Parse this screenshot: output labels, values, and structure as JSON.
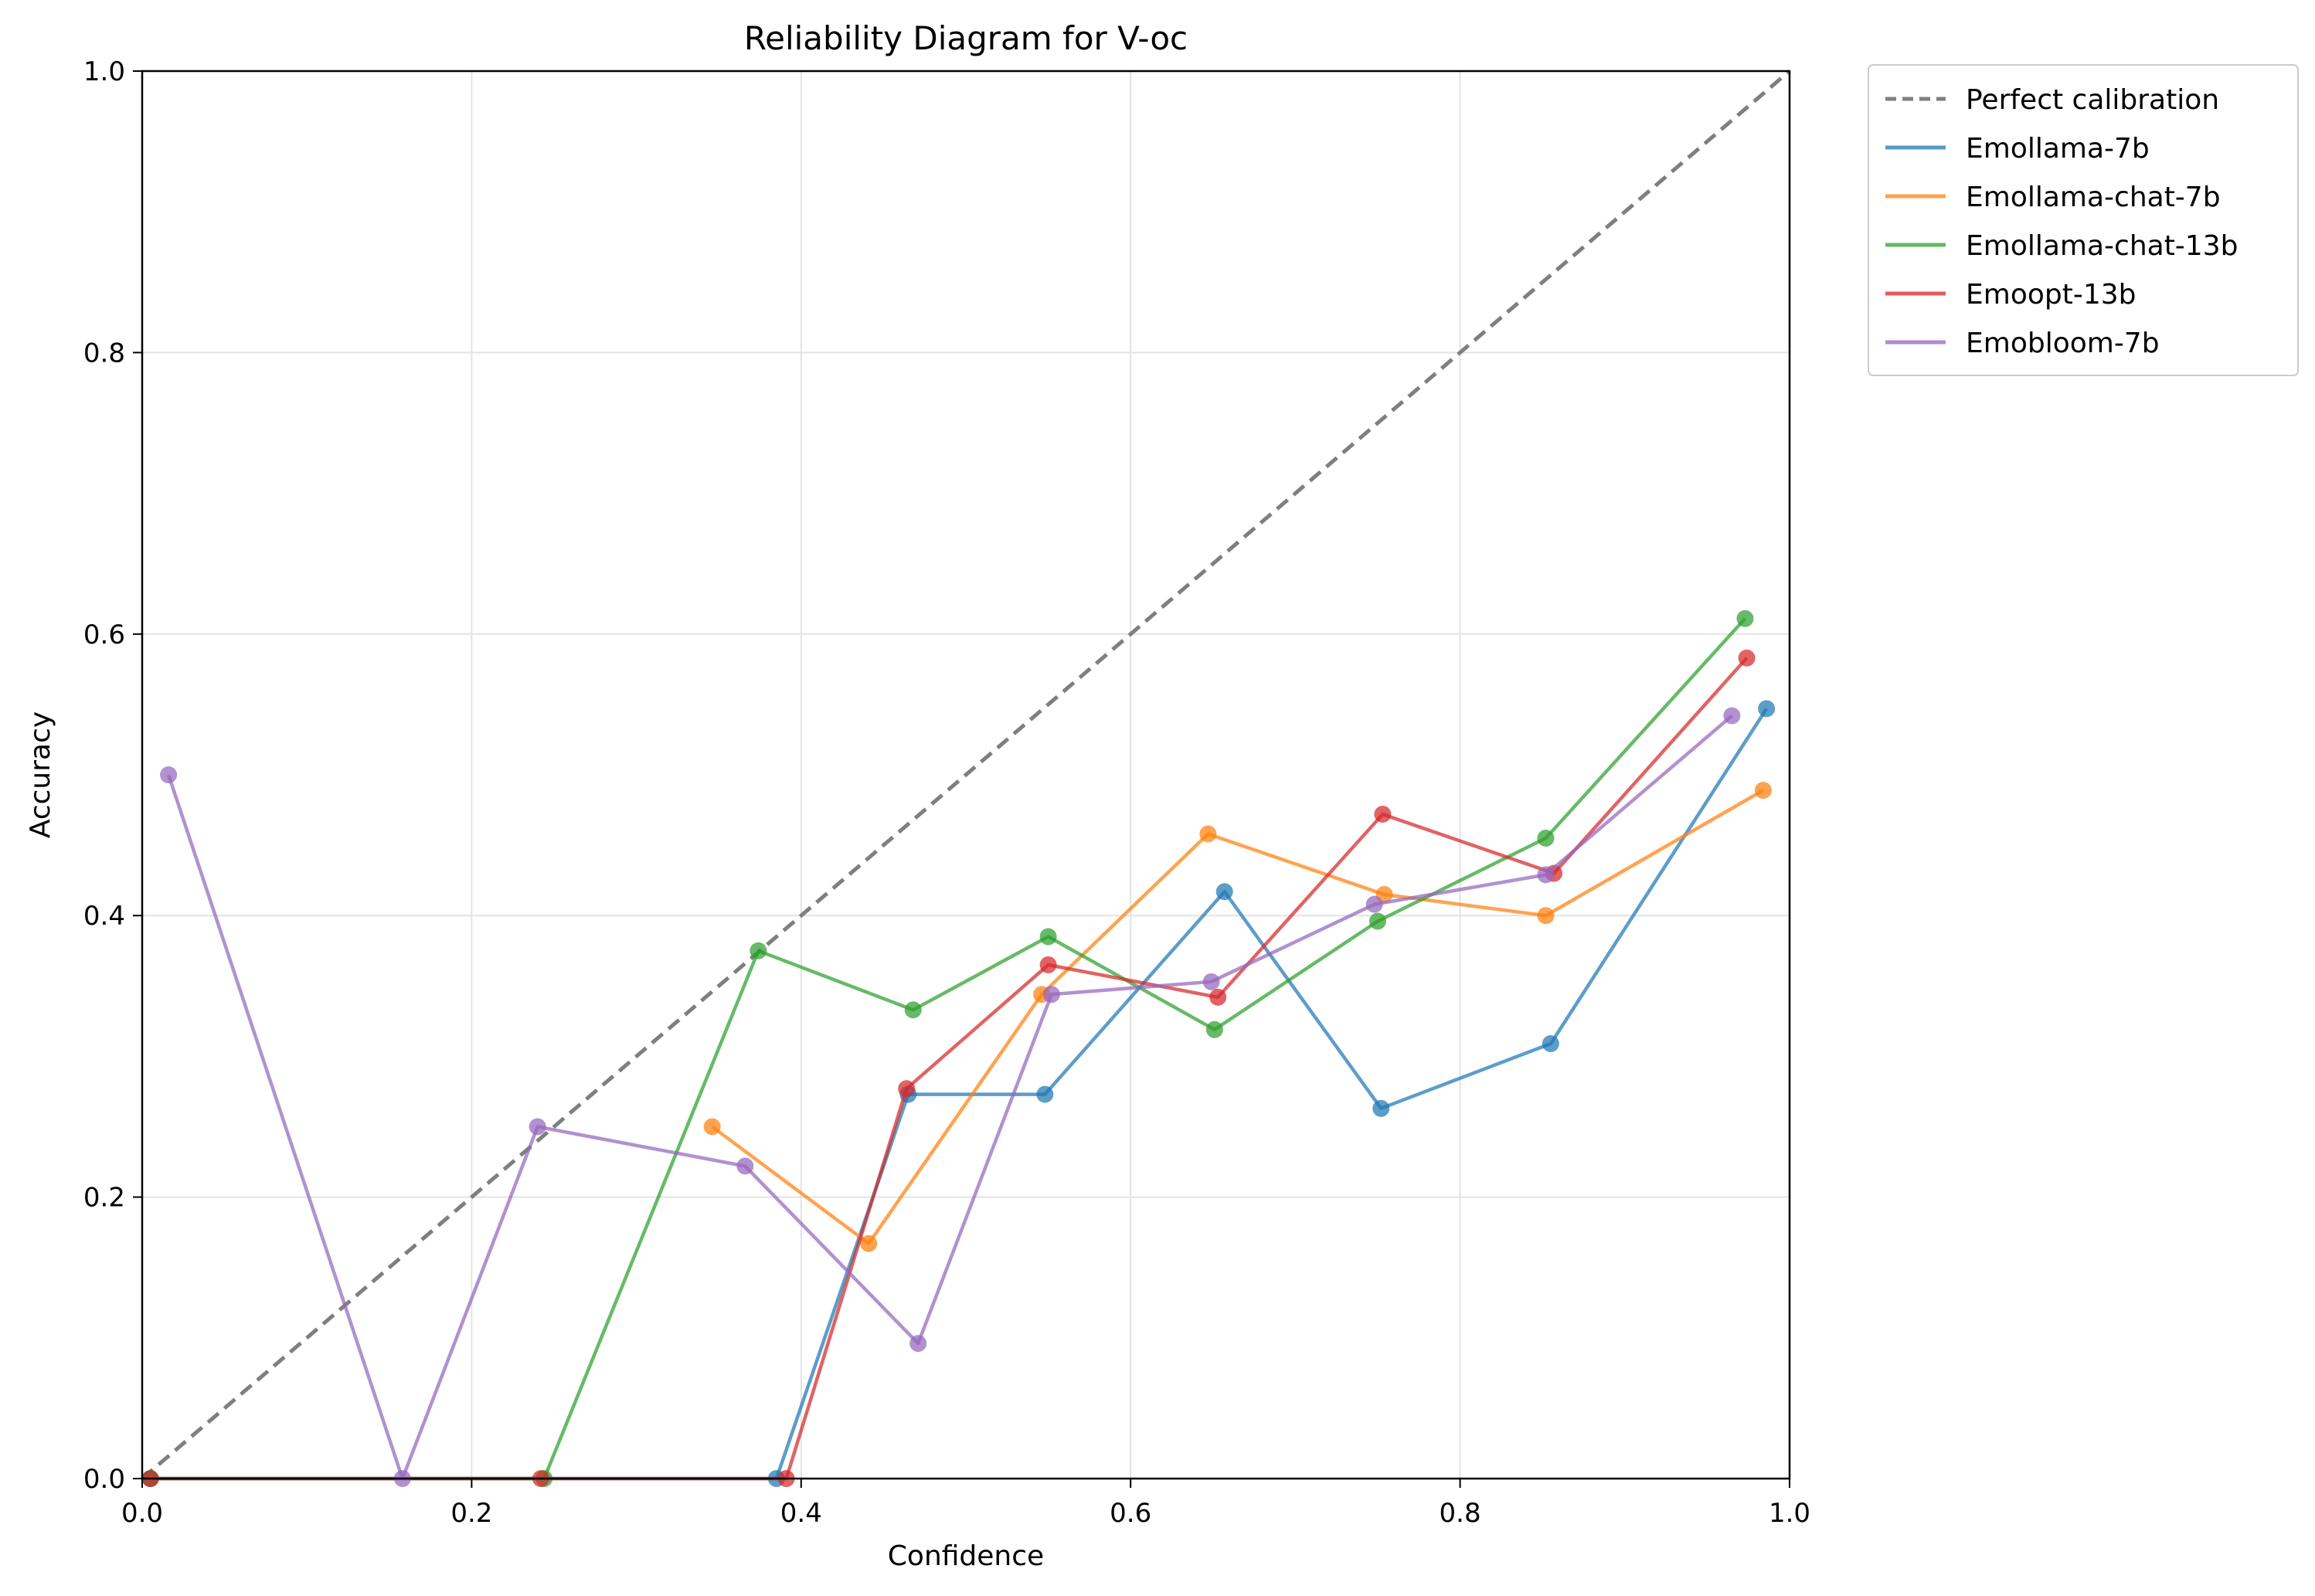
{
  "chart_data": {
    "type": "line",
    "title": "Reliability Diagram for V-oc",
    "xlabel": "Confidence",
    "ylabel": "Accuracy",
    "xlim": [
      0.0,
      1.0
    ],
    "ylim": [
      0.0,
      1.0
    ],
    "x_ticks": [
      "0.0",
      "0.2",
      "0.4",
      "0.6",
      "0.8",
      "1.0"
    ],
    "y_ticks": [
      "0.0",
      "0.2",
      "0.4",
      "0.6",
      "0.8",
      "1.0"
    ],
    "grid": true,
    "legend_position": "outside-top-right",
    "reference_line": {
      "name": "Perfect calibration",
      "color": "#7f7f7f",
      "points": [
        [
          0.0,
          0.0
        ],
        [
          1.0,
          1.0
        ]
      ]
    },
    "series": [
      {
        "name": "Emollama-7b",
        "color": "#1f77b4",
        "points": [
          [
            0.005,
            0.0
          ],
          [
            0.385,
            0.0
          ],
          [
            0.465,
            0.273
          ],
          [
            0.548,
            0.273
          ],
          [
            0.657,
            0.417
          ],
          [
            0.752,
            0.263
          ],
          [
            0.855,
            0.309
          ],
          [
            0.986,
            0.547
          ]
        ]
      },
      {
        "name": "Emollama-chat-7b",
        "color": "#ff7f0e",
        "points": [
          [
            0.346,
            0.25
          ],
          [
            0.441,
            0.167
          ],
          [
            0.546,
            0.344
          ],
          [
            0.647,
            0.458
          ],
          [
            0.754,
            0.415
          ],
          [
            0.852,
            0.4
          ],
          [
            0.984,
            0.489
          ]
        ]
      },
      {
        "name": "Emollama-chat-13b",
        "color": "#2ca02c",
        "points": [
          [
            0.005,
            0.0
          ],
          [
            0.244,
            0.0
          ],
          [
            0.374,
            0.375
          ],
          [
            0.468,
            0.333
          ],
          [
            0.55,
            0.385
          ],
          [
            0.651,
            0.319
          ],
          [
            0.75,
            0.396
          ],
          [
            0.852,
            0.455
          ],
          [
            0.973,
            0.611
          ]
        ]
      },
      {
        "name": "Emoopt-13b",
        "color": "#d62728",
        "points": [
          [
            0.005,
            0.0
          ],
          [
            0.242,
            0.0
          ],
          [
            0.391,
            0.0
          ],
          [
            0.464,
            0.277
          ],
          [
            0.55,
            0.365
          ],
          [
            0.653,
            0.342
          ],
          [
            0.753,
            0.472
          ],
          [
            0.857,
            0.43
          ],
          [
            0.974,
            0.583
          ]
        ]
      },
      {
        "name": "Emobloom-7b",
        "color": "#9467bd",
        "points": [
          [
            0.016,
            0.5
          ],
          [
            0.158,
            0.0
          ],
          [
            0.24,
            0.25
          ],
          [
            0.366,
            0.222
          ],
          [
            0.471,
            0.096
          ],
          [
            0.552,
            0.344
          ],
          [
            0.649,
            0.353
          ],
          [
            0.748,
            0.408
          ],
          [
            0.852,
            0.429
          ],
          [
            0.965,
            0.542
          ]
        ]
      }
    ]
  }
}
